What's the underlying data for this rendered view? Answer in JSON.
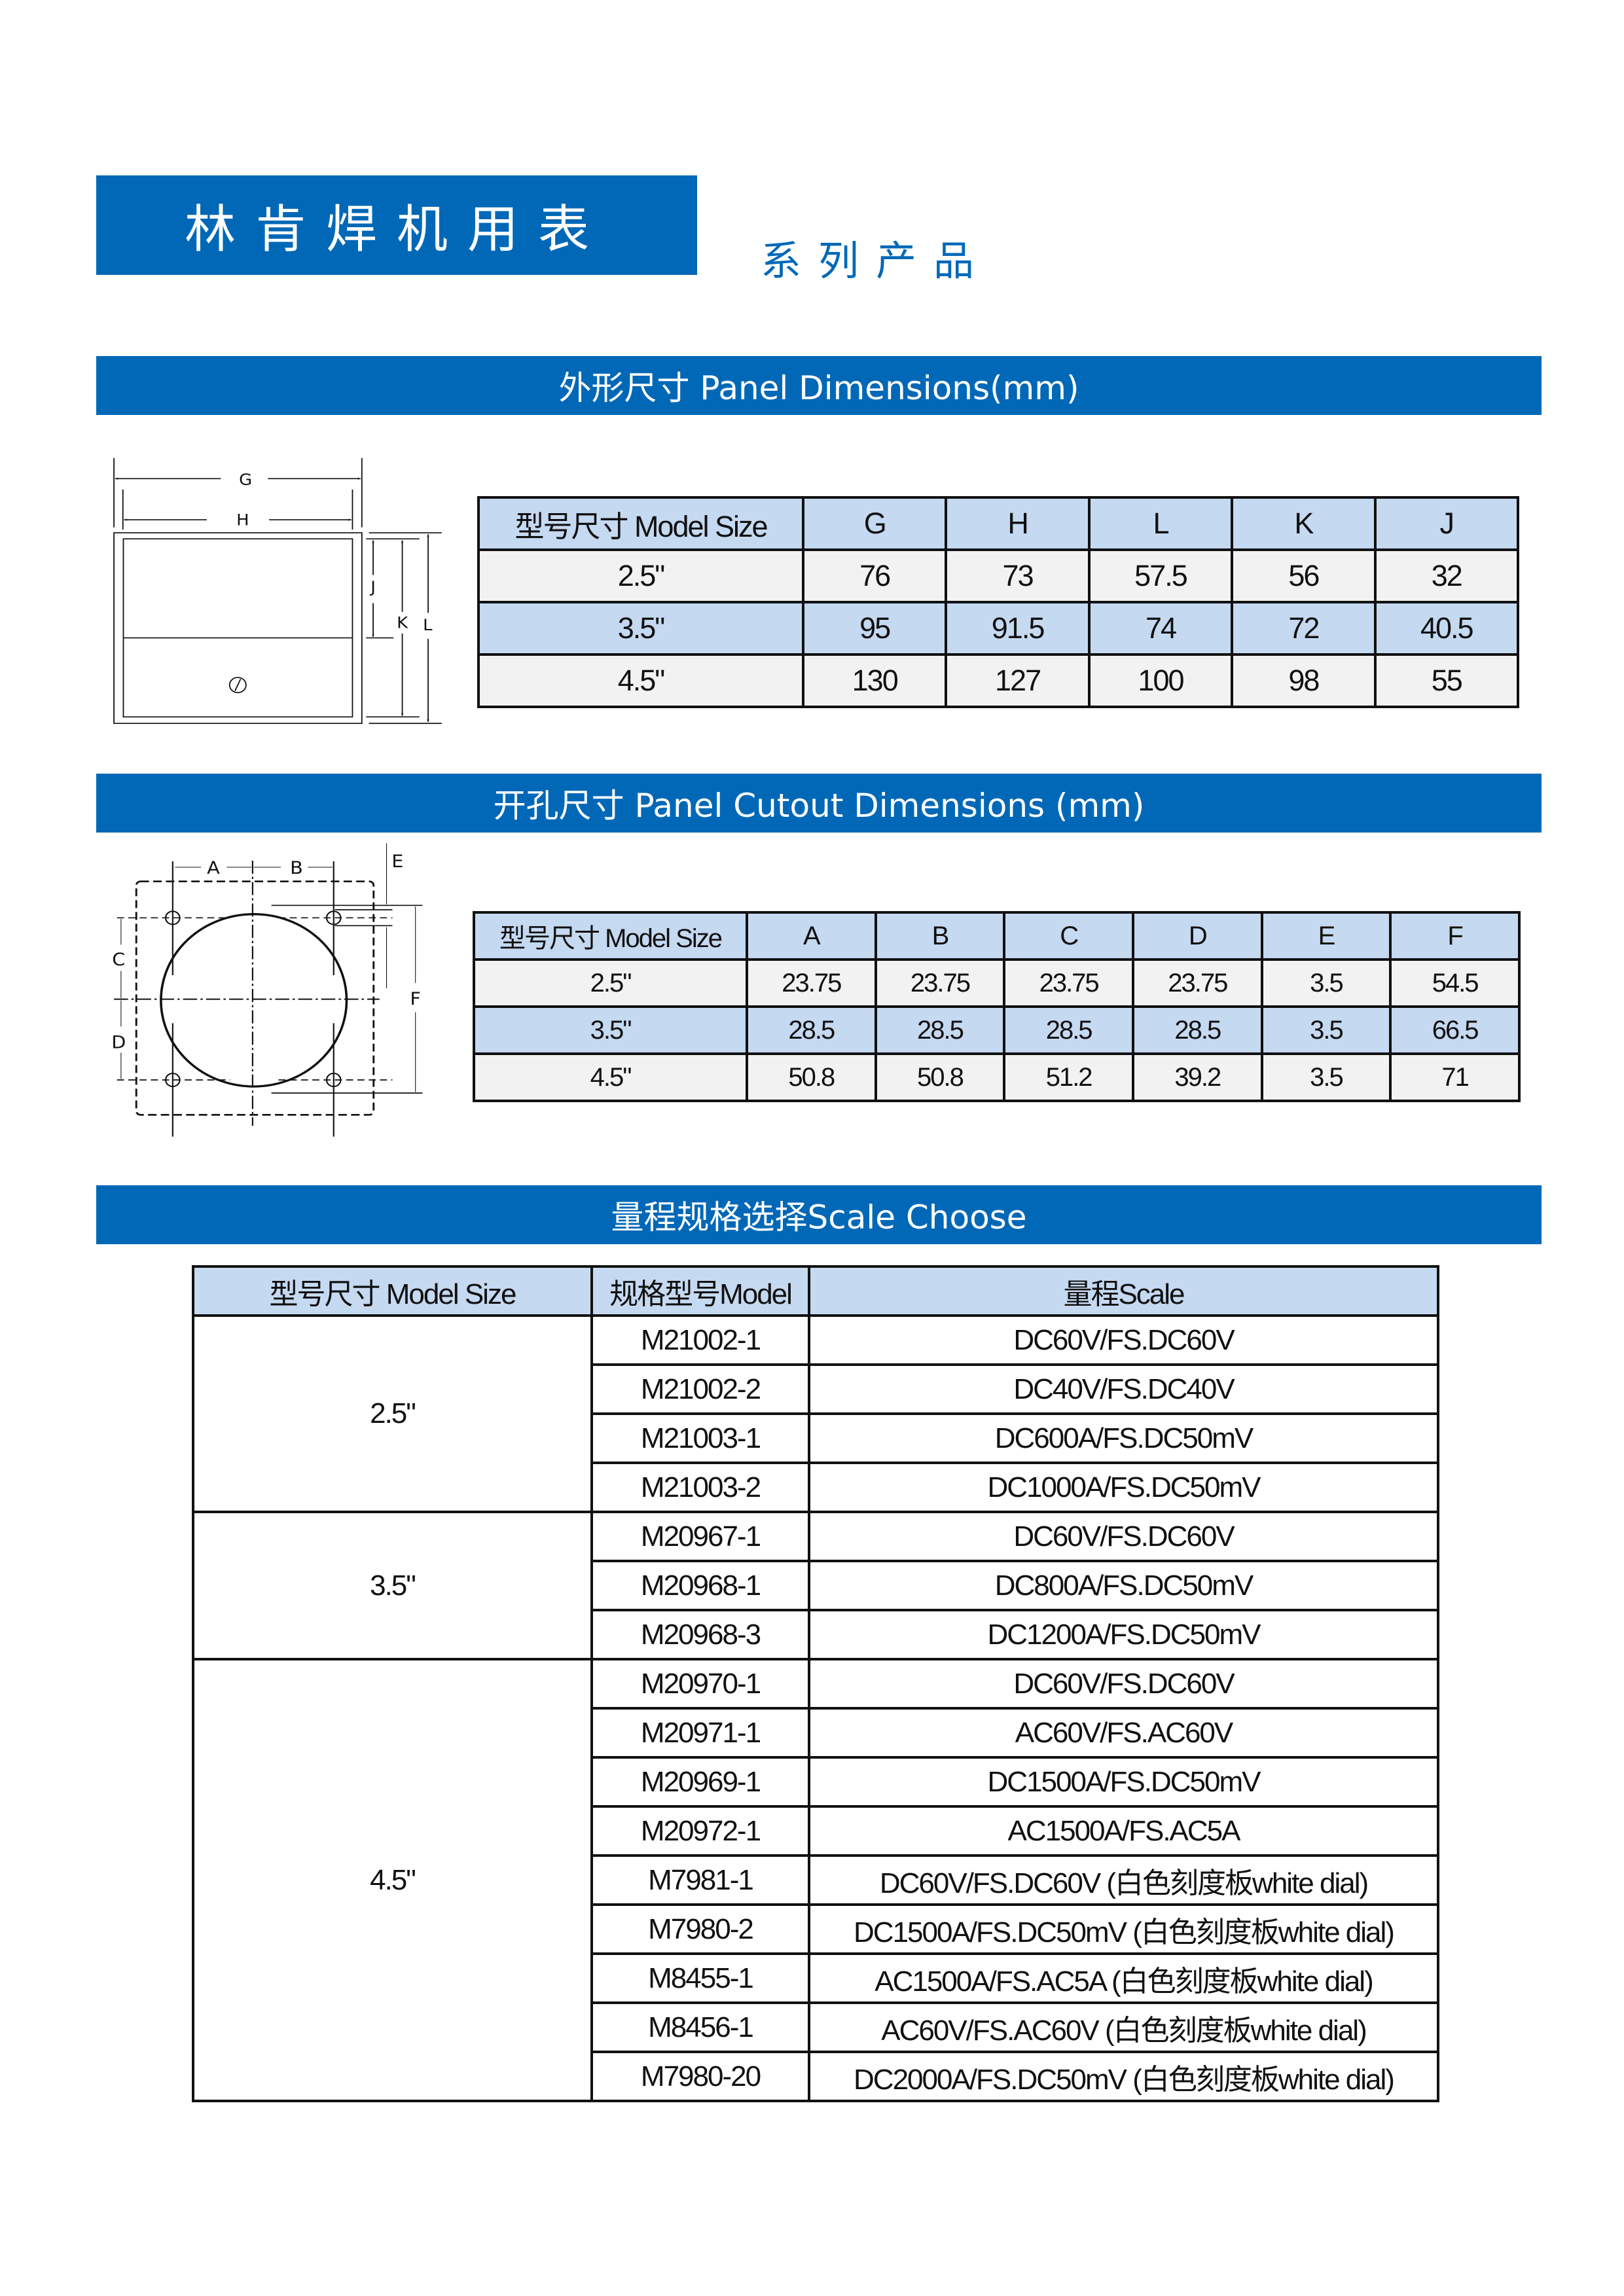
{
  "header": {
    "title": "林肯焊机用表",
    "subtitle": "系列产品"
  },
  "colors": {
    "brand_blue": "#0068b7",
    "table_header": "#c5d9f1",
    "row_light": "#f2f2f2"
  },
  "panel_dimensions": {
    "heading": "外形尺寸 Panel Dimensions(mm)",
    "diagram_labels": [
      "G",
      "H",
      "J",
      "K",
      "L"
    ],
    "columns": [
      "型号尺寸 Model Size",
      "G",
      "H",
      "L",
      "K",
      "J"
    ],
    "rows": [
      [
        "2.5\"",
        "76",
        "73",
        "57.5",
        "56",
        "32"
      ],
      [
        "3.5\"",
        "95",
        "91.5",
        "74",
        "72",
        "40.5"
      ],
      [
        "4.5\"",
        "130",
        "127",
        "100",
        "98",
        "55"
      ]
    ]
  },
  "cutout_dimensions": {
    "heading": "开孔尺寸 Panel Cutout Dimensions (mm)",
    "diagram_labels": [
      "A",
      "B",
      "C",
      "D",
      "E",
      "F"
    ],
    "columns": [
      "型号尺寸 Model Size",
      "A",
      "B",
      "C",
      "D",
      "E",
      "F"
    ],
    "rows": [
      [
        "2.5\"",
        "23.75",
        "23.75",
        "23.75",
        "23.75",
        "3.5",
        "54.5"
      ],
      [
        "3.5\"",
        "28.5",
        "28.5",
        "28.5",
        "28.5",
        "3.5",
        "66.5"
      ],
      [
        "4.5\"",
        "50.8",
        "50.8",
        "51.2",
        "39.2",
        "3.5",
        "71"
      ]
    ]
  },
  "scale_choose": {
    "heading": "量程规格选择Scale Choose",
    "columns": [
      "型号尺寸 Model Size",
      "规格型号Model",
      "量程Scale"
    ],
    "groups": [
      {
        "size": "2.5\"",
        "items": [
          {
            "model": "M21002-1",
            "scale": "DC60V/FS.DC60V"
          },
          {
            "model": "M21002-2",
            "scale": "DC40V/FS.DC40V"
          },
          {
            "model": "M21003-1",
            "scale": "DC600A/FS.DC50mV"
          },
          {
            "model": "M21003-2",
            "scale": "DC1000A/FS.DC50mV"
          }
        ]
      },
      {
        "size": "3.5\"",
        "items": [
          {
            "model": "M20967-1",
            "scale": "DC60V/FS.DC60V"
          },
          {
            "model": "M20968-1",
            "scale": "DC800A/FS.DC50mV"
          },
          {
            "model": "M20968-3",
            "scale": "DC1200A/FS.DC50mV"
          }
        ]
      },
      {
        "size": "4.5\"",
        "items": [
          {
            "model": "M20970-1",
            "scale": "DC60V/FS.DC60V"
          },
          {
            "model": "M20971-1",
            "scale": "AC60V/FS.AC60V"
          },
          {
            "model": "M20969-1",
            "scale": "DC1500A/FS.DC50mV"
          },
          {
            "model": "M20972-1",
            "scale": "AC1500A/FS.AC5A"
          },
          {
            "model": "M7981-1",
            "scale": "DC60V/FS.DC60V (白色刻度板white dial)"
          },
          {
            "model": "M7980-2",
            "scale": "DC1500A/FS.DC50mV (白色刻度板white dial)"
          },
          {
            "model": "M8455-1",
            "scale": "AC1500A/FS.AC5A (白色刻度板white dial)"
          },
          {
            "model": "M8456-1",
            "scale": "AC60V/FS.AC60V (白色刻度板white dial)"
          },
          {
            "model": "M7980-20",
            "scale": "DC2000A/FS.DC50mV (白色刻度板white dial)"
          }
        ]
      }
    ]
  }
}
